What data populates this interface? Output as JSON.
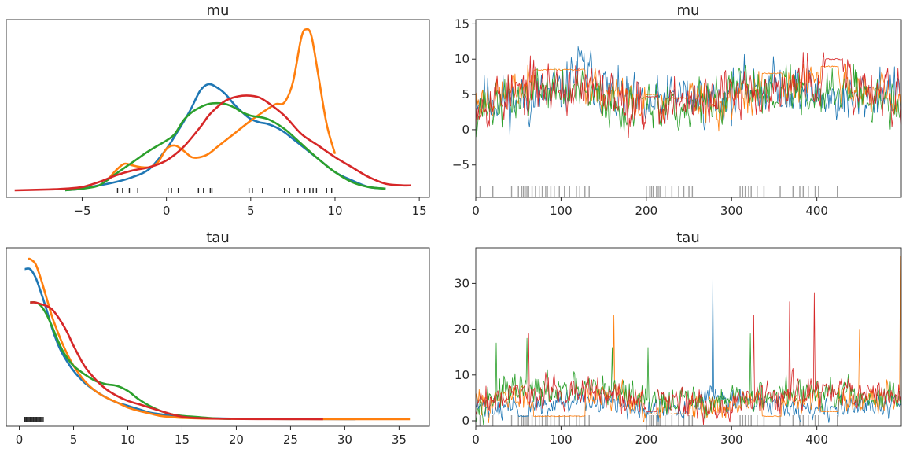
{
  "colors": [
    "#1f77b4",
    "#ff7f0e",
    "#2ca02c",
    "#d62728"
  ],
  "chart_data": [
    {
      "type": "line",
      "subtype": "kde",
      "title": "mu",
      "xlabel": "",
      "ylabel": "",
      "xlim": [
        -9.5,
        15.6
      ],
      "ylim": [
        0,
        1
      ],
      "xticks": [
        -5,
        0,
        5,
        10,
        15
      ],
      "yticks": [],
      "grid": false,
      "series": [
        {
          "color": "#1f77b4",
          "x": [
            -6,
            -5,
            -4,
            -3,
            -2,
            -1,
            0,
            0.7,
            1.4,
            2,
            2.5,
            3,
            3.5,
            4,
            4.5,
            5,
            5.5,
            6,
            6.5,
            7,
            7.5,
            8,
            9,
            10,
            11,
            12,
            13
          ],
          "y": [
            0,
            0.01,
            0.03,
            0.05,
            0.08,
            0.13,
            0.25,
            0.36,
            0.48,
            0.6,
            0.64,
            0.62,
            0.58,
            0.52,
            0.47,
            0.43,
            0.41,
            0.4,
            0.38,
            0.35,
            0.31,
            0.27,
            0.19,
            0.11,
            0.06,
            0.02,
            0.01
          ]
        },
        {
          "color": "#ff7f0e",
          "x": [
            -3.5,
            -3,
            -2.5,
            -2,
            -1.5,
            -1,
            -0.5,
            0,
            0.5,
            1,
            1.5,
            2,
            2.5,
            3,
            4,
            5,
            6,
            6.5,
            7,
            7.5,
            8,
            8.3,
            8.6,
            9,
            9.5,
            10
          ],
          "y": [
            0.06,
            0.12,
            0.16,
            0.15,
            0.14,
            0.14,
            0.17,
            0.25,
            0.27,
            0.24,
            0.2,
            0.2,
            0.22,
            0.26,
            0.34,
            0.42,
            0.49,
            0.52,
            0.53,
            0.65,
            0.92,
            0.97,
            0.93,
            0.7,
            0.4,
            0.22
          ]
        },
        {
          "color": "#2ca02c",
          "x": [
            -6,
            -5,
            -4,
            -3,
            -2,
            -1,
            0,
            0.5,
            1,
            1.5,
            2,
            2.5,
            3,
            3.5,
            4,
            4.5,
            5,
            6,
            7,
            8,
            9,
            10,
            11,
            12,
            13
          ],
          "y": [
            0,
            0.01,
            0.03,
            0.1,
            0.17,
            0.24,
            0.3,
            0.34,
            0.42,
            0.47,
            0.5,
            0.52,
            0.525,
            0.52,
            0.5,
            0.47,
            0.45,
            0.43,
            0.37,
            0.28,
            0.19,
            0.11,
            0.05,
            0.02,
            0.01
          ]
        },
        {
          "color": "#d62728",
          "x": [
            -9,
            -7,
            -6,
            -5,
            -4,
            -3,
            -2,
            -1,
            0,
            1,
            2,
            2.5,
            3,
            3.5,
            4,
            4.5,
            5,
            5.5,
            6,
            7,
            8,
            9,
            10,
            11,
            12,
            13,
            14,
            14.5
          ],
          "y": [
            0,
            0.005,
            0.01,
            0.02,
            0.05,
            0.09,
            0.12,
            0.14,
            0.18,
            0.26,
            0.38,
            0.45,
            0.5,
            0.54,
            0.56,
            0.57,
            0.57,
            0.56,
            0.53,
            0.45,
            0.34,
            0.27,
            0.2,
            0.14,
            0.08,
            0.04,
            0.03,
            0.03
          ]
        }
      ],
      "rug": {
        "color": "#262626",
        "positions": [
          -2.9,
          -2.6,
          -2.2,
          -1.7,
          0.1,
          0.3,
          0.7,
          1.9,
          2.2,
          2.6,
          2.7,
          4.9,
          5.1,
          5.7,
          7,
          7.3,
          7.8,
          8.2,
          8.5,
          8.7,
          8.9,
          9.5,
          9.8
        ]
      }
    },
    {
      "type": "line",
      "subtype": "trace",
      "title": "mu",
      "xlabel": "",
      "ylabel": "",
      "xlim": [
        0,
        499
      ],
      "ylim": [
        -9.6,
        15.6
      ],
      "xticks": [
        0,
        100,
        200,
        300,
        400
      ],
      "yticks": [
        -5,
        0,
        5,
        10,
        15
      ],
      "grid": false,
      "n_draws": 500,
      "series": [
        {
          "color": "#1f77b4",
          "anchors_x": [
            0,
            40,
            100,
            120,
            140,
            160,
            200,
            240,
            280,
            320,
            360,
            400,
            440,
            480,
            499
          ],
          "anchors_y": [
            5,
            4,
            5,
            9,
            7,
            5,
            3,
            5,
            4,
            6,
            6,
            5,
            4,
            6,
            4
          ],
          "noise": 3.2,
          "seed": 11,
          "stuck": []
        },
        {
          "color": "#ff7f0e",
          "anchors_x": [
            0,
            40,
            80,
            120,
            160,
            200,
            240,
            280,
            320,
            360,
            400,
            440,
            480,
            499
          ],
          "anchors_y": [
            4,
            5,
            7,
            6,
            5,
            3,
            5,
            3,
            5,
            6,
            7,
            6,
            5,
            3
          ],
          "noise": 2.6,
          "seed": 23,
          "stuck": [
            [
              68,
              128,
              8.5
            ],
            [
              200,
              212,
              5
            ],
            [
              224,
              250,
              4.5
            ],
            [
              336,
              358,
              8
            ],
            [
              405,
              425,
              9
            ]
          ]
        },
        {
          "color": "#2ca02c",
          "anchors_x": [
            0,
            40,
            80,
            120,
            160,
            200,
            240,
            280,
            320,
            360,
            400,
            440,
            480,
            499
          ],
          "anchors_y": [
            3,
            4,
            6,
            5,
            4,
            2,
            3,
            4,
            6,
            6,
            5,
            6,
            5,
            4
          ],
          "noise": 3.0,
          "seed": 37,
          "stuck": [
            [
              188,
              200,
              4.5
            ]
          ]
        },
        {
          "color": "#d62728",
          "anchors_x": [
            0,
            40,
            80,
            120,
            160,
            200,
            240,
            280,
            320,
            360,
            400,
            440,
            480,
            499
          ],
          "anchors_y": [
            4,
            5,
            6,
            6,
            5,
            3,
            4,
            4,
            6,
            6,
            7,
            6,
            5,
            4
          ],
          "noise": 3.3,
          "seed": 53,
          "stuck": [
            [
              200,
              212,
              4.7
            ],
            [
              410,
              430,
              10
            ]
          ]
        }
      ],
      "divergences": {
        "color": "#a0a0a0",
        "draws": [
          5,
          20,
          42,
          50,
          54,
          56,
          58,
          60,
          62,
          66,
          70,
          75,
          78,
          82,
          84,
          88,
          92,
          98,
          104,
          110,
          118,
          122,
          128,
          133,
          200,
          204,
          206,
          208,
          212,
          214,
          216,
          222,
          230,
          238,
          244,
          250,
          254,
          310,
          313,
          316,
          320,
          323,
          330,
          338,
          357,
          372,
          380,
          384,
          390,
          398,
          402,
          424
        ]
      }
    },
    {
      "type": "line",
      "subtype": "kde",
      "title": "tau",
      "xlabel": "",
      "ylabel": "",
      "xlim": [
        -1.2,
        37.8
      ],
      "ylim": [
        0,
        1
      ],
      "xticks": [
        0,
        5,
        10,
        15,
        20,
        25,
        30,
        35
      ],
      "yticks": [],
      "grid": false,
      "series": [
        {
          "color": "#1f77b4",
          "x": [
            0.5,
            1,
            1.5,
            2,
            2.5,
            3,
            3.5,
            4,
            5,
            6,
            7,
            8,
            9,
            10,
            11,
            12,
            13,
            14,
            15,
            17,
            19,
            21,
            25,
            31
          ],
          "y": [
            0.9,
            0.9,
            0.85,
            0.76,
            0.66,
            0.55,
            0.46,
            0.39,
            0.29,
            0.22,
            0.17,
            0.13,
            0.1,
            0.08,
            0.06,
            0.04,
            0.03,
            0.02,
            0.01,
            0.006,
            0.004,
            0.002,
            0.001,
            0.0005
          ]
        },
        {
          "color": "#ff7f0e",
          "x": [
            0.8,
            1,
            1.5,
            2,
            2.5,
            3,
            3.5,
            4,
            4.5,
            5,
            6,
            7,
            8,
            9,
            10,
            11,
            12,
            13,
            14,
            15,
            17,
            20,
            25,
            30,
            36
          ],
          "y": [
            0.96,
            0.96,
            0.93,
            0.84,
            0.73,
            0.62,
            0.53,
            0.45,
            0.38,
            0.32,
            0.23,
            0.17,
            0.13,
            0.1,
            0.07,
            0.05,
            0.035,
            0.02,
            0.013,
            0.008,
            0.004,
            0.002,
            0.001,
            0.0005,
            0
          ]
        },
        {
          "color": "#2ca02c",
          "x": [
            1,
            1.5,
            2,
            2.5,
            3,
            3.5,
            4,
            4.5,
            5,
            6,
            7,
            8,
            9,
            10,
            11,
            12,
            13,
            14,
            15,
            16,
            17,
            18,
            19.5
          ],
          "y": [
            0.7,
            0.7,
            0.68,
            0.63,
            0.56,
            0.48,
            0.41,
            0.36,
            0.32,
            0.27,
            0.23,
            0.21,
            0.2,
            0.17,
            0.12,
            0.08,
            0.05,
            0.03,
            0.02,
            0.015,
            0.01,
            0.005,
            0.002
          ]
        },
        {
          "color": "#d62728",
          "x": [
            1,
            1.5,
            2,
            2.5,
            3,
            3.5,
            4,
            4.5,
            5,
            6,
            7,
            8,
            9,
            10,
            11,
            12,
            13,
            14,
            15,
            16,
            18,
            20,
            22,
            25,
            28
          ],
          "y": [
            0.7,
            0.7,
            0.69,
            0.68,
            0.66,
            0.62,
            0.57,
            0.51,
            0.44,
            0.32,
            0.24,
            0.18,
            0.14,
            0.11,
            0.09,
            0.07,
            0.05,
            0.03,
            0.015,
            0.008,
            0.004,
            0.002,
            0.001,
            0.0008,
            0.0005
          ]
        }
      ],
      "rug": {
        "color": "#262626",
        "positions": [
          0.5,
          0.6,
          0.7,
          0.8,
          0.9,
          1,
          1.1,
          1.2,
          1.3,
          1.4,
          1.5,
          1.6,
          1.7,
          1.8,
          1.9,
          2,
          2.2
        ]
      }
    },
    {
      "type": "line",
      "subtype": "trace",
      "title": "tau",
      "xlabel": "",
      "ylabel": "",
      "xlim": [
        0,
        499
      ],
      "ylim": [
        -1.2,
        37.8
      ],
      "xticks": [
        0,
        100,
        200,
        300,
        400
      ],
      "yticks": [
        0,
        10,
        20,
        30
      ],
      "grid": false,
      "n_draws": 500,
      "series": [
        {
          "color": "#1f77b4",
          "anchors_x": [
            0,
            40,
            100,
            150,
            200,
            250,
            280,
            300,
            350,
            400,
            450,
            499
          ],
          "anchors_y": [
            3,
            3,
            4,
            4,
            2,
            3,
            6,
            4,
            3,
            3,
            4,
            4
          ],
          "noise": 2.2,
          "seed": 71,
          "stuck": [
            [
              50,
              62,
              1
            ]
          ],
          "spikes": [
            [
              278,
              31
            ]
          ]
        },
        {
          "color": "#ff7f0e",
          "anchors_x": [
            0,
            50,
            100,
            150,
            200,
            250,
            300,
            350,
            400,
            450,
            499
          ],
          "anchors_y": [
            4,
            5,
            5,
            6,
            3,
            3,
            3,
            5,
            5,
            5,
            6
          ],
          "noise": 2.6,
          "seed": 83,
          "stuck": [
            [
              68,
              128,
              1
            ],
            [
              200,
              212,
              1.5
            ],
            [
              224,
              250,
              1.5
            ],
            [
              336,
              358,
              1
            ],
            [
              405,
              425,
              2
            ]
          ],
          "spikes": [
            [
              162,
              23
            ],
            [
              450,
              20
            ],
            [
              498,
              36
            ]
          ]
        },
        {
          "color": "#2ca02c",
          "anchors_x": [
            0,
            50,
            100,
            150,
            200,
            250,
            300,
            350,
            400,
            450,
            499
          ],
          "anchors_y": [
            4,
            7,
            6,
            7,
            5,
            4,
            4,
            6,
            6,
            5,
            5
          ],
          "noise": 3.0,
          "seed": 97,
          "stuck": [],
          "spikes": [
            [
              24,
              17
            ],
            [
              60,
              18
            ],
            [
              160,
              16
            ],
            [
              202,
              16
            ],
            [
              322,
              19
            ]
          ]
        },
        {
          "color": "#d62728",
          "anchors_x": [
            0,
            50,
            100,
            150,
            200,
            250,
            300,
            350,
            400,
            450,
            499
          ],
          "anchors_y": [
            4,
            6,
            6,
            6,
            4,
            4,
            4,
            6,
            6,
            6,
            5
          ],
          "noise": 3.0,
          "seed": 109,
          "stuck": [
            [
              200,
              212,
              2
            ]
          ],
          "spikes": [
            [
              62,
              19
            ],
            [
              326,
              23
            ],
            [
              368,
              26
            ],
            [
              397,
              28
            ]
          ]
        }
      ],
      "divergences": {
        "color": "#a0a0a0",
        "draws": [
          5,
          20,
          42,
          50,
          54,
          56,
          58,
          60,
          62,
          66,
          70,
          75,
          78,
          82,
          84,
          88,
          92,
          98,
          104,
          110,
          118,
          122,
          128,
          133,
          200,
          204,
          206,
          208,
          212,
          214,
          216,
          222,
          230,
          238,
          244,
          250,
          254,
          310,
          313,
          316,
          320,
          323,
          330,
          338,
          357,
          372,
          380,
          384,
          390,
          398,
          402,
          424
        ]
      }
    }
  ]
}
